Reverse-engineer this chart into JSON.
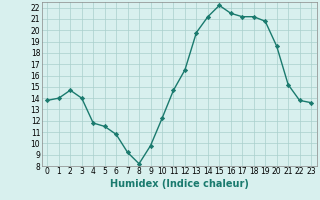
{
  "x": [
    0,
    1,
    2,
    3,
    4,
    5,
    6,
    7,
    8,
    9,
    10,
    11,
    12,
    13,
    14,
    15,
    16,
    17,
    18,
    19,
    20,
    21,
    22,
    23
  ],
  "y": [
    13.8,
    14.0,
    14.7,
    14.0,
    11.8,
    11.5,
    10.8,
    9.2,
    8.2,
    9.8,
    12.2,
    14.7,
    16.5,
    19.8,
    21.2,
    22.2,
    21.5,
    21.2,
    21.2,
    20.8,
    18.6,
    15.2,
    13.8,
    13.6
  ],
  "line_color": "#1a7a6e",
  "marker": "D",
  "marker_size": 2.2,
  "line_width": 1.0,
  "bg_color": "#d8f0ee",
  "grid_color": "#aacfcc",
  "xlabel": "Humidex (Indice chaleur)",
  "xlabel_fontsize": 7,
  "tick_fontsize": 5.5,
  "ylim": [
    8,
    22.5
  ],
  "xlim": [
    -0.5,
    23.5
  ],
  "yticks": [
    8,
    9,
    10,
    11,
    12,
    13,
    14,
    15,
    16,
    17,
    18,
    19,
    20,
    21,
    22
  ],
  "xticks": [
    0,
    1,
    2,
    3,
    4,
    5,
    6,
    7,
    8,
    9,
    10,
    11,
    12,
    13,
    14,
    15,
    16,
    17,
    18,
    19,
    20,
    21,
    22,
    23
  ]
}
